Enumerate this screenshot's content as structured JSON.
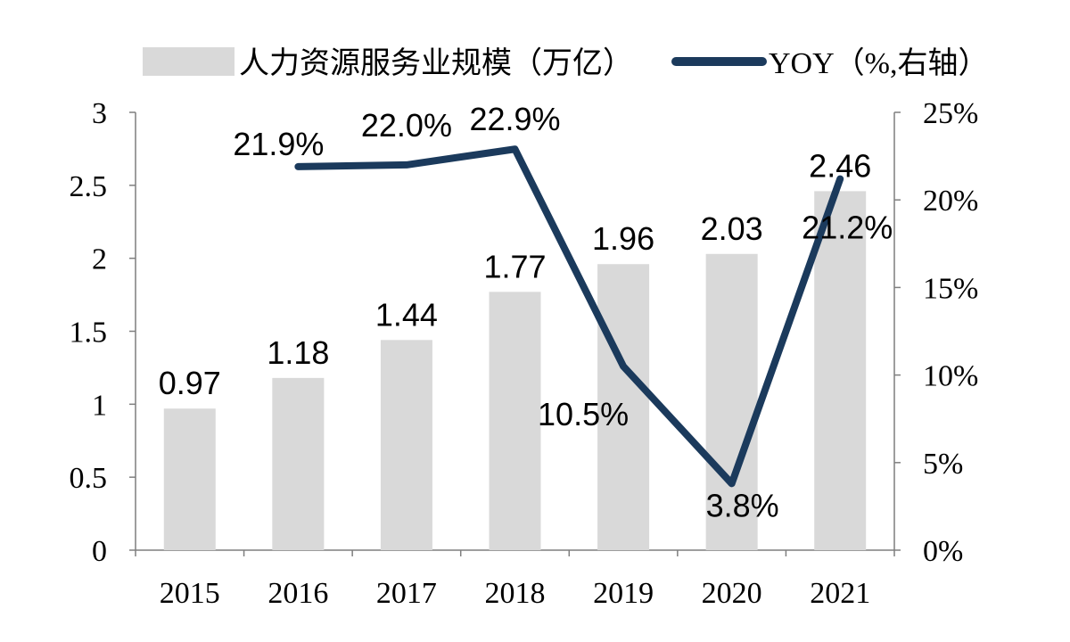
{
  "chart_data": {
    "type": "bar",
    "categories": [
      "2015",
      "2016",
      "2017",
      "2018",
      "2019",
      "2020",
      "2021"
    ],
    "series": [
      {
        "name": "人力资源服务业规模（万亿）",
        "type": "bar",
        "axis": "left",
        "color": "#d9d9d9",
        "values": [
          0.97,
          1.18,
          1.44,
          1.77,
          1.96,
          2.03,
          2.46
        ],
        "labels": [
          "0.97",
          "1.18",
          "1.44",
          "1.77",
          "1.96",
          "2.03",
          "2.46"
        ]
      },
      {
        "name": "YOY（%,右轴）",
        "type": "line",
        "axis": "right",
        "color": "#1b3a5c",
        "values": [
          null,
          21.9,
          22.0,
          22.9,
          10.5,
          3.8,
          21.2
        ],
        "labels": [
          "",
          "21.9%",
          "22.0%",
          "22.9%",
          "10.5%",
          "3.8%",
          "21.2%"
        ]
      }
    ],
    "y_left": {
      "lim": [
        0,
        3
      ],
      "ticks": [
        0,
        0.5,
        1,
        1.5,
        2,
        2.5,
        3
      ],
      "tick_labels": [
        "0",
        "0.5",
        "1",
        "1.5",
        "2",
        "2.5",
        "3"
      ]
    },
    "y_right": {
      "lim": [
        0,
        25
      ],
      "ticks": [
        0,
        5,
        10,
        15,
        20,
        25
      ],
      "tick_labels": [
        "0%",
        "5%",
        "10%",
        "15%",
        "20%",
        "25%"
      ]
    },
    "title": "",
    "xlabel": "",
    "grid": false,
    "legend_position": "top"
  }
}
